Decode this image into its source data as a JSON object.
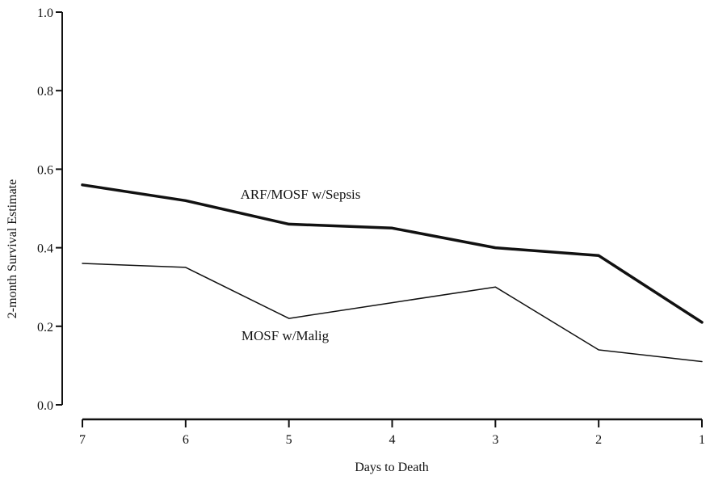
{
  "chart_data": {
    "type": "line",
    "title": "",
    "xlabel": "Days to Death",
    "ylabel": "2-month Survival Estimate",
    "x": [
      7,
      6,
      5,
      4,
      3,
      2,
      1
    ],
    "x_tick_labels": [
      "7",
      "6",
      "5",
      "4",
      "3",
      "2",
      "1"
    ],
    "x_reversed": true,
    "ylim": [
      0.0,
      1.0
    ],
    "y_tick_labels": [
      "0.0",
      "0.2",
      "0.4",
      "0.6",
      "0.8",
      "1.0"
    ],
    "grid": false,
    "legend": "none",
    "series": [
      {
        "name": "ARF/MOSF w/Sepsis",
        "values": [
          0.56,
          0.52,
          0.46,
          0.45,
          0.4,
          0.38,
          0.21
        ],
        "color": "#111111"
      },
      {
        "name": "MOSF w/Malig",
        "values": [
          0.36,
          0.35,
          0.22,
          0.26,
          0.3,
          0.14,
          0.11
        ],
        "color": "#111111"
      }
    ]
  }
}
